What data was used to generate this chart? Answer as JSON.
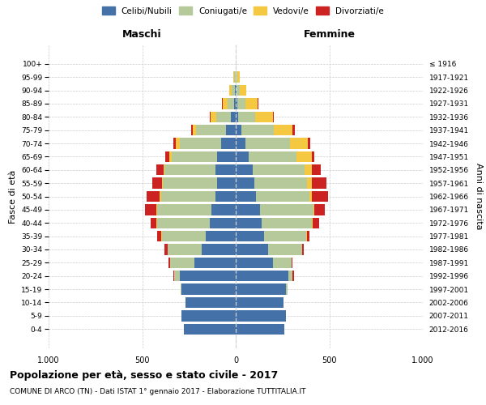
{
  "age_groups": [
    "0-4",
    "5-9",
    "10-14",
    "15-19",
    "20-24",
    "25-29",
    "30-34",
    "35-39",
    "40-44",
    "45-49",
    "50-54",
    "55-59",
    "60-64",
    "65-69",
    "70-74",
    "75-79",
    "80-84",
    "85-89",
    "90-94",
    "95-99",
    "100+"
  ],
  "birth_years": [
    "2012-2016",
    "2007-2011",
    "2002-2006",
    "1997-2001",
    "1992-1996",
    "1987-1991",
    "1982-1986",
    "1977-1981",
    "1972-1976",
    "1967-1971",
    "1962-1966",
    "1957-1961",
    "1952-1956",
    "1947-1951",
    "1942-1946",
    "1937-1941",
    "1932-1936",
    "1927-1931",
    "1922-1926",
    "1917-1921",
    "≤ 1916"
  ],
  "maschi": {
    "celibi": [
      275,
      290,
      270,
      290,
      300,
      220,
      180,
      160,
      140,
      130,
      110,
      100,
      110,
      100,
      80,
      50,
      25,
      10,
      5,
      2,
      0
    ],
    "coniugati": [
      0,
      0,
      0,
      5,
      30,
      130,
      185,
      235,
      280,
      290,
      290,
      290,
      270,
      240,
      220,
      160,
      80,
      35,
      15,
      5,
      0
    ],
    "vedovi": [
      0,
      0,
      0,
      0,
      0,
      0,
      0,
      5,
      5,
      5,
      5,
      5,
      5,
      15,
      20,
      20,
      30,
      25,
      15,
      5,
      0
    ],
    "divorziati": [
      0,
      0,
      0,
      0,
      5,
      10,
      15,
      20,
      30,
      60,
      70,
      50,
      40,
      20,
      15,
      10,
      5,
      5,
      0,
      0,
      0
    ]
  },
  "femmine": {
    "nubili": [
      260,
      270,
      255,
      270,
      280,
      200,
      175,
      150,
      140,
      130,
      110,
      100,
      90,
      70,
      50,
      30,
      15,
      10,
      5,
      2,
      0
    ],
    "coniugate": [
      0,
      0,
      0,
      5,
      25,
      100,
      180,
      225,
      265,
      285,
      285,
      280,
      280,
      255,
      240,
      175,
      90,
      40,
      15,
      5,
      0
    ],
    "vedove": [
      0,
      0,
      0,
      0,
      0,
      0,
      0,
      5,
      5,
      5,
      10,
      25,
      35,
      80,
      95,
      100,
      95,
      65,
      35,
      15,
      0
    ],
    "divorziate": [
      0,
      0,
      0,
      0,
      5,
      5,
      10,
      15,
      35,
      55,
      90,
      80,
      50,
      15,
      15,
      10,
      5,
      5,
      0,
      0,
      0
    ]
  },
  "colors": {
    "celibi": "#4472a8",
    "coniugati": "#b5c99a",
    "vedovi": "#f5c842",
    "divorziati": "#cc2222"
  },
  "title": "Popolazione per età, sesso e stato civile - 2017",
  "subtitle": "COMUNE DI ARCO (TN) - Dati ISTAT 1° gennaio 2017 - Elaborazione TUTTITALIA.IT",
  "xlabel_left": "Maschi",
  "xlabel_right": "Femmine",
  "ylabel": "Fasce di età",
  "ylabel_right": "Anni di nascita",
  "xlim": 1000,
  "legend_labels": [
    "Celibi/Nubili",
    "Coniugati/e",
    "Vedovi/e",
    "Divorziati/e"
  ],
  "background_color": "#ffffff",
  "grid_color": "#cccccc"
}
